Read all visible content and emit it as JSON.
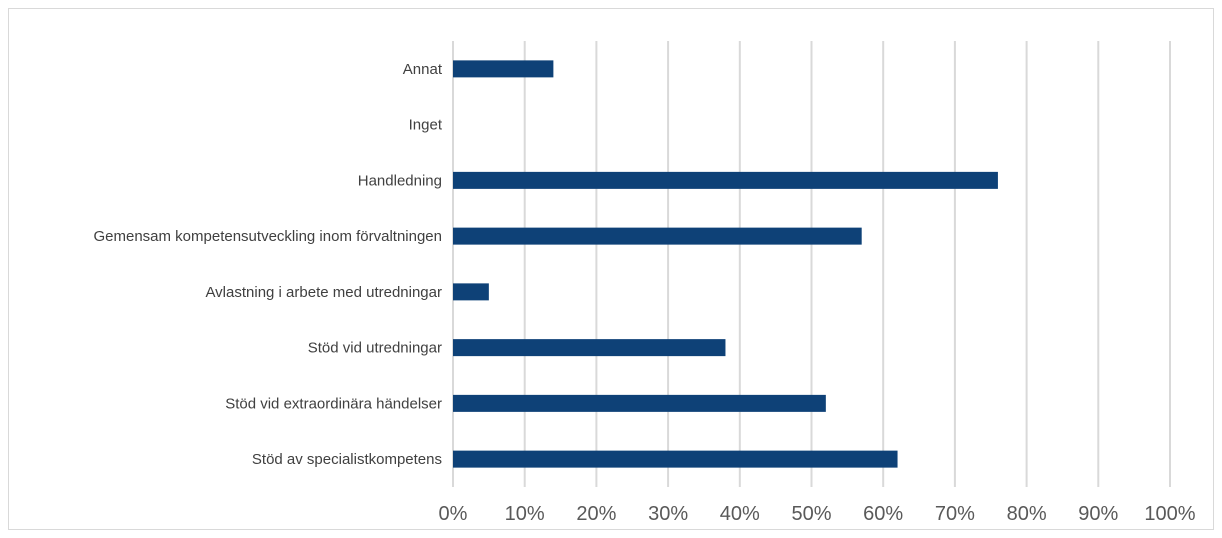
{
  "chart_data": {
    "type": "bar",
    "orientation": "horizontal",
    "categories": [
      "Annat",
      "Inget",
      "Handledning",
      "Gemensam kompetensutveckling inom förvaltningen",
      "Avlastning i arbete med utredningar",
      "Stöd vid utredningar",
      "Stöd vid extraordinära händelser",
      "Stöd av specialistkompetens"
    ],
    "values": [
      14,
      0,
      76,
      57,
      5,
      38,
      52,
      62
    ],
    "title": "",
    "xlabel": "",
    "ylabel": "",
    "xlim": [
      0,
      100
    ],
    "x_ticks": [
      "0%",
      "10%",
      "20%",
      "30%",
      "40%",
      "50%",
      "60%",
      "70%",
      "80%",
      "90%",
      "100%"
    ],
    "grid": true,
    "legend": "none",
    "bar_color": "#0e4177",
    "grid_color": "#d9d9d9"
  }
}
